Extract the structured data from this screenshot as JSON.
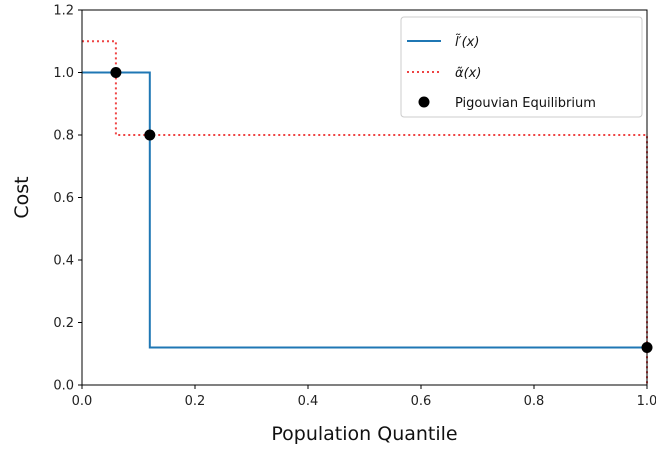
{
  "chart_data": {
    "type": "line",
    "xlabel": "Population Quantile",
    "ylabel": "Cost",
    "xlim": [
      0.0,
      1.0
    ],
    "ylim": [
      0.0,
      1.2
    ],
    "xticks": [
      "0.0",
      "0.2",
      "0.4",
      "0.6",
      "0.8",
      "1.0"
    ],
    "yticks": [
      "0.0",
      "0.2",
      "0.4",
      "0.6",
      "0.8",
      "1.0",
      "1.2"
    ],
    "grid": false,
    "legend_position": "top-right",
    "series": [
      {
        "name": "l̃′(x)",
        "style": "solid",
        "color": "#1f77b4",
        "x": [
          0.0,
          0.12,
          0.12,
          1.0
        ],
        "y": [
          1.0,
          1.0,
          0.12,
          0.12
        ]
      },
      {
        "name": "α̃(x)",
        "style": "dotted",
        "color": "#ee4444",
        "x": [
          0.0,
          0.06,
          0.06,
          1.0,
          1.0
        ],
        "y": [
          1.1,
          1.1,
          0.8,
          0.8,
          0.0
        ]
      },
      {
        "name": "Pigouvian Equilibrium",
        "style": "markers",
        "color": "#000000",
        "x": [
          0.06,
          0.12,
          1.0
        ],
        "y": [
          1.0,
          0.8,
          0.12
        ]
      }
    ]
  }
}
